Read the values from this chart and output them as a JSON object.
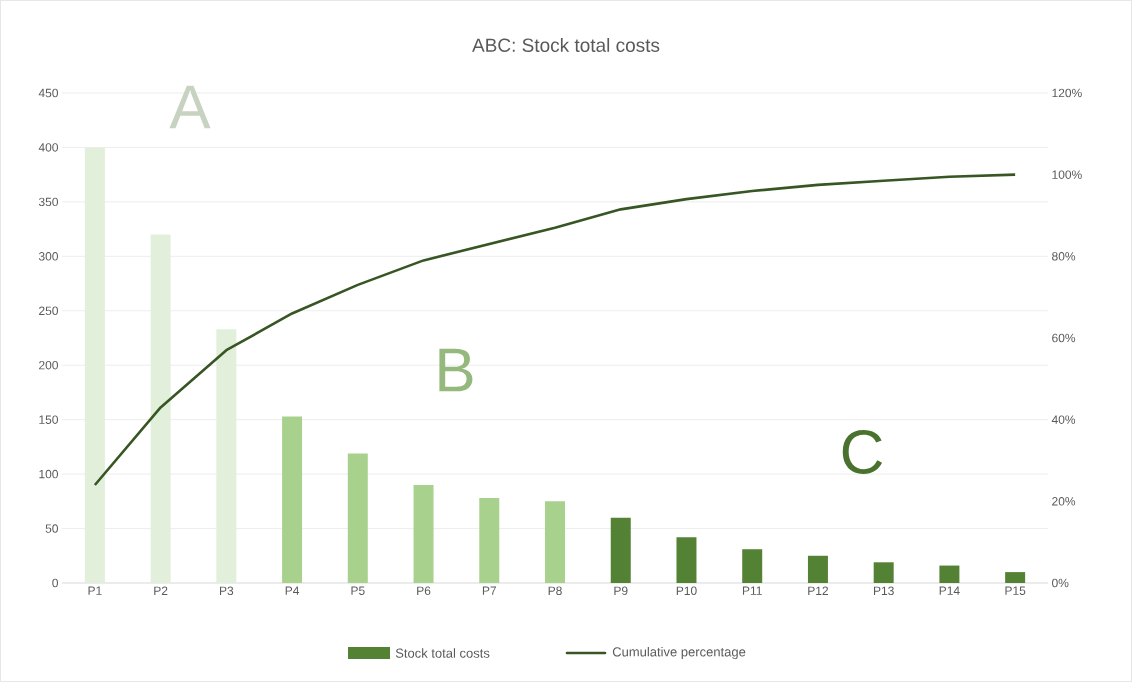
{
  "chart_data": {
    "type": "bar",
    "title": "ABC: Stock total costs",
    "categories": [
      "P1",
      "P2",
      "P3",
      "P4",
      "P5",
      "P6",
      "P7",
      "P8",
      "P9",
      "P10",
      "P11",
      "P12",
      "P13",
      "P14",
      "P15"
    ],
    "series": [
      {
        "name": "Stock total costs",
        "color": "#548235",
        "colors": [
          "#e2efda",
          "#e2efda",
          "#e2efda",
          "#a9d18e",
          "#a9d18e",
          "#a9d18e",
          "#a9d18e",
          "#a9d18e",
          "#548235",
          "#548235",
          "#548235",
          "#548235",
          "#548235",
          "#548235",
          "#548235"
        ],
        "values": [
          400,
          320,
          233,
          153,
          119,
          90,
          78,
          75,
          60,
          42,
          31,
          25,
          19,
          16,
          10
        ]
      },
      {
        "name": "Cumulative percentage",
        "type": "line",
        "axis": "y2",
        "color": "#375623",
        "values": [
          24,
          43,
          57,
          66,
          73,
          79,
          83,
          87,
          91.5,
          94,
          96,
          97.5,
          98.5,
          99.5,
          100
        ]
      }
    ],
    "ylim": [
      0,
      450
    ],
    "yticks": [
      0,
      50,
      100,
      150,
      200,
      250,
      300,
      350,
      400,
      450
    ],
    "y2lim": [
      0,
      120
    ],
    "y2ticks": [
      {
        "value": 0,
        "label": "0%"
      },
      {
        "value": 20,
        "label": "20%"
      },
      {
        "value": 40,
        "label": "40%"
      },
      {
        "value": 60,
        "label": "60%"
      },
      {
        "value": 80,
        "label": "80%"
      },
      {
        "value": 100,
        "label": "100%"
      },
      {
        "value": 120,
        "label": "120%"
      }
    ],
    "grid": "y",
    "legend": "bottom",
    "annotations": [
      "A",
      "B",
      "C"
    ]
  }
}
